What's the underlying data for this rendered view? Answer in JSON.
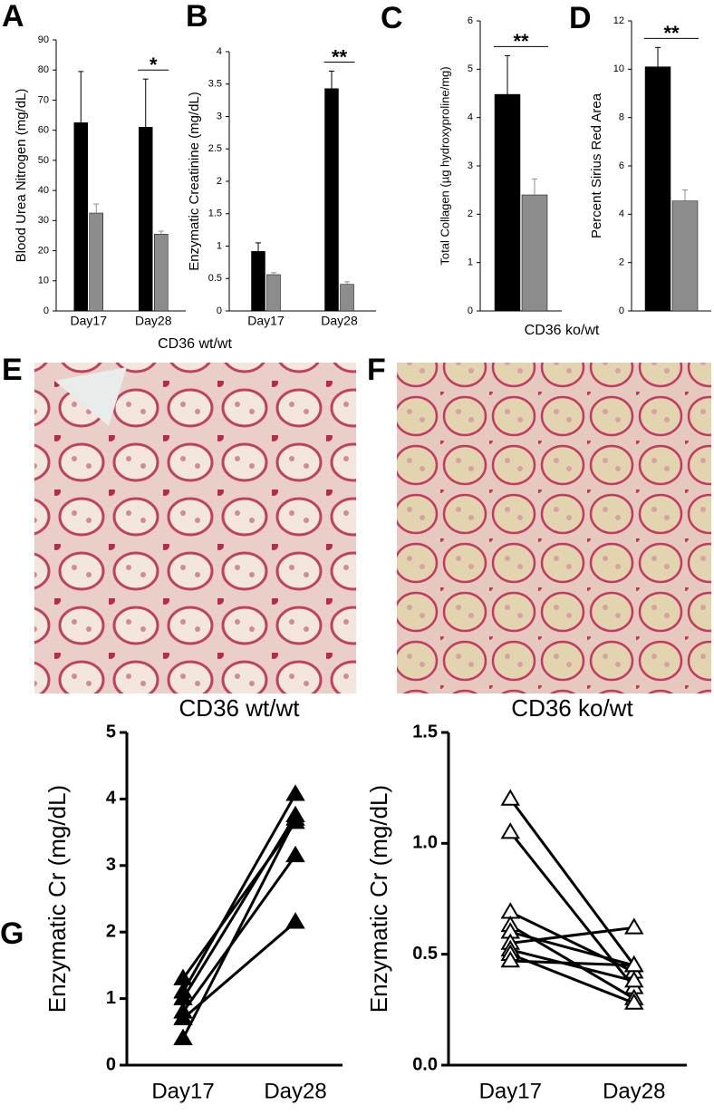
{
  "chart_data": [
    {
      "type": "bar",
      "panel": "A",
      "ylabel": "Blood Urea Nitrogen (mg/dL)",
      "categories": [
        "Day17",
        "Day28"
      ],
      "series": [
        {
          "color": "#000000",
          "values": [
            62.5,
            61
          ],
          "errors": [
            17,
            16
          ]
        },
        {
          "color": "#8c8c8c",
          "values": [
            32.5,
            25.5
          ],
          "errors": [
            3,
            1
          ]
        }
      ],
      "significance": [
        null,
        "*"
      ],
      "ylim": [
        0,
        90
      ],
      "yticks": [
        0,
        10,
        20,
        30,
        40,
        50,
        60,
        70,
        80,
        90
      ]
    },
    {
      "type": "bar",
      "panel": "B",
      "ylabel": "Enzymatic Creatinine (mg/dL)",
      "categories": [
        "Day17",
        "Day28"
      ],
      "series": [
        {
          "color": "#000000",
          "values": [
            0.92,
            3.43
          ],
          "errors": [
            0.13,
            0.27
          ]
        },
        {
          "color": "#8c8c8c",
          "values": [
            0.56,
            0.41
          ],
          "errors": [
            0.03,
            0.04
          ]
        }
      ],
      "significance": [
        null,
        "**"
      ],
      "ylim": [
        0,
        4
      ],
      "yticks": [
        0,
        0.5,
        1,
        1.5,
        2,
        2.5,
        3,
        3.5,
        4
      ]
    },
    {
      "type": "bar",
      "panel": "C",
      "ylabel": "Total Collagen (µg hydroxyproline/mg)",
      "categories": [
        null
      ],
      "series": [
        {
          "color": "#000000",
          "values": [
            4.48
          ],
          "errors": [
            0.8
          ]
        },
        {
          "color": "#8c8c8c",
          "values": [
            2.4
          ],
          "errors": [
            0.33
          ]
        }
      ],
      "significance": [
        "**"
      ],
      "ylim": [
        0,
        6
      ],
      "yticks": [
        0,
        1,
        2,
        3,
        4,
        5,
        6
      ]
    },
    {
      "type": "bar",
      "panel": "D",
      "ylabel": "Percent Sirius Red Area",
      "categories": [
        null
      ],
      "series": [
        {
          "color": "#000000",
          "values": [
            10.1
          ],
          "errors": [
            0.8
          ]
        },
        {
          "color": "#8c8c8c",
          "values": [
            4.55
          ],
          "errors": [
            0.45
          ]
        }
      ],
      "significance": [
        "**"
      ],
      "ylim": [
        0,
        12
      ],
      "yticks": [
        0,
        2,
        4,
        6,
        8,
        10,
        12
      ]
    },
    {
      "type": "line",
      "panel": "G",
      "title": "CD36 wt/wt",
      "ylabel": "Enzymatic Cr (mg/dL)",
      "categories": [
        "Day17",
        "Day28"
      ],
      "marker": "filled",
      "series": [
        {
          "color": "#000000",
          "values": [
            1.3,
            3.65
          ]
        },
        {
          "color": "#000000",
          "values": [
            1.1,
            4.07
          ]
        },
        {
          "color": "#000000",
          "values": [
            1.0,
            3.75
          ]
        },
        {
          "color": "#000000",
          "values": [
            0.8,
            3.15
          ]
        },
        {
          "color": "#000000",
          "values": [
            0.7,
            2.15
          ]
        },
        {
          "color": "#000000",
          "values": [
            0.4,
            3.7
          ]
        }
      ],
      "ylim": [
        0,
        5
      ],
      "yticks": [
        0,
        1,
        2,
        3,
        4,
        5
      ]
    },
    {
      "type": "line",
      "title": "CD36 ko/wt",
      "ylabel": "Enzymatic Cr (mg/dL)",
      "categories": [
        "Day17",
        "Day28"
      ],
      "marker": "open",
      "series": [
        {
          "color": "#000000",
          "values": [
            1.2,
            0.45
          ]
        },
        {
          "color": "#000000",
          "values": [
            1.05,
            0.35
          ]
        },
        {
          "color": "#000000",
          "values": [
            0.69,
            0.42
          ]
        },
        {
          "color": "#000000",
          "values": [
            0.63,
            0.3
          ]
        },
        {
          "color": "#000000",
          "values": [
            0.6,
            0.45
          ]
        },
        {
          "color": "#000000",
          "values": [
            0.55,
            0.62
          ]
        },
        {
          "color": "#000000",
          "values": [
            0.52,
            0.38
          ]
        },
        {
          "color": "#000000",
          "values": [
            0.5,
            0.28
          ]
        },
        {
          "color": "#000000",
          "values": [
            0.47,
            0.45
          ]
        }
      ],
      "ylim": [
        0,
        1.5
      ],
      "yticks": [
        {
          "value": 0,
          "label": "0.0"
        },
        0.5,
        {
          "value": 1,
          "label": "1.0"
        },
        1.5
      ]
    }
  ],
  "group_labels": [
    "CD36 wt/wt",
    "CD36 ko/wt"
  ],
  "images": [
    {
      "panel": "E"
    },
    {
      "panel": "F"
    }
  ]
}
